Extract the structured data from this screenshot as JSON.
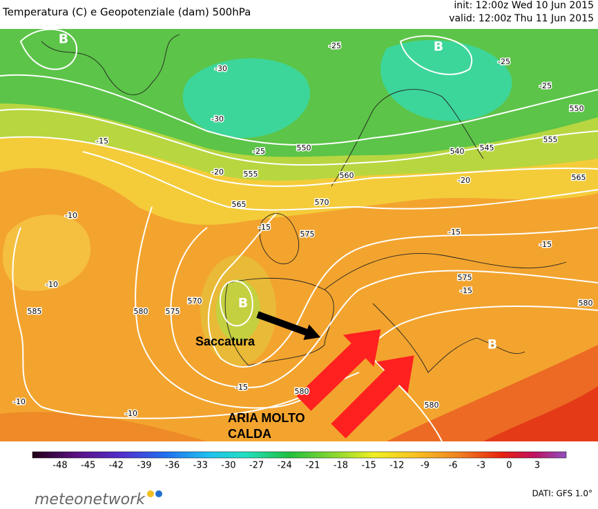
{
  "header": {
    "title": "Temperatura (C) e Geopotenziale (dam) 500hPa",
    "init": "init: 12:00z Wed 10 Jun 2015",
    "valid": "valid: 12:00z Thu 11 Jun 2015"
  },
  "map": {
    "centers": [
      "B",
      "B",
      "B",
      "B"
    ],
    "annotations": {
      "trough": "Saccatura",
      "warm_air": [
        "ARIA MOLTO",
        "CALDA"
      ]
    },
    "contour_labels": [
      550,
      555,
      565,
      570,
      575,
      560,
      540,
      545,
      550,
      555,
      565,
      575,
      580,
      580,
      575,
      570,
      585,
      580,
      580,
      -10,
      -10,
      -10,
      -10,
      -15,
      -15,
      -15,
      -15,
      -15,
      -15,
      -20,
      -20,
      -25,
      -25,
      -25,
      -25,
      -30,
      -30
    ]
  },
  "colorbar": {
    "ticks": [
      -48,
      -45,
      -42,
      -39,
      -36,
      -33,
      -30,
      -27,
      -24,
      -21,
      -18,
      -15,
      -12,
      -9,
      -6,
      -3,
      0,
      3
    ]
  },
  "footer": {
    "brand": "meteonetwork",
    "source": "DATI: GFS 1.0°"
  }
}
